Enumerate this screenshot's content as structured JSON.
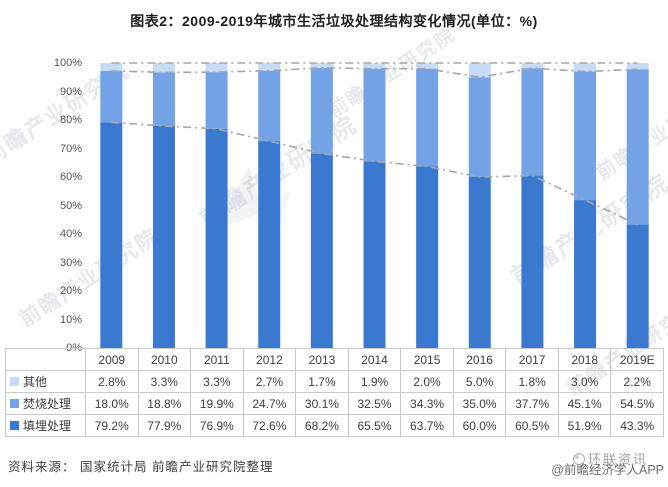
{
  "title": "图表2：2009-2019年城市生活垃圾处理结构变化情况(单位：%)",
  "colors": {
    "landfill": "#3b79d1",
    "incineration": "#73a3e6",
    "other": "#c7dcf4",
    "guide_line": "#a6a6a6",
    "table_border": "#c9c9c9",
    "text": "#3d3d3d"
  },
  "chart_data": {
    "type": "bar",
    "stacked": true,
    "title": "图表2：2009-2019年城市生活垃圾处理结构变化情况(单位：%)",
    "xlabel": "",
    "ylabel": "",
    "ylim": [
      0,
      100
    ],
    "grid": false,
    "yticks": [
      "100%",
      "90%",
      "80%",
      "70%",
      "60%",
      "50%",
      "40%",
      "30%",
      "20%",
      "10%",
      "0%"
    ],
    "categories": [
      "2009",
      "2010",
      "2011",
      "2012",
      "2013",
      "2014",
      "2015",
      "2016",
      "2017",
      "2018",
      "2019E"
    ],
    "series": [
      {
        "name": "填埋处理",
        "color_key": "landfill",
        "values": [
          79.2,
          77.9,
          76.9,
          72.6,
          68.2,
          65.5,
          63.7,
          60.0,
          60.5,
          51.9,
          43.3
        ]
      },
      {
        "name": "焚烧处理",
        "color_key": "incineration",
        "values": [
          18.0,
          18.8,
          19.9,
          24.7,
          30.1,
          32.5,
          34.3,
          35.0,
          37.7,
          45.1,
          54.5
        ]
      },
      {
        "name": "其他",
        "color_key": "other",
        "values": [
          2.8,
          3.3,
          3.3,
          2.7,
          1.7,
          1.9,
          2.0,
          5.0,
          1.8,
          3.0,
          2.2
        ]
      }
    ],
    "guide_lines": {
      "style": "dash-dot",
      "description": "gray dash-dot lines tracing cumulative stack boundaries: 填埋处理, 填埋处理+焚烧处理, and 100% total",
      "levels": [
        "landfill",
        "landfill_plus_incineration",
        "total_100"
      ]
    },
    "legend_position": "table-left",
    "table_row_order": [
      "其他",
      "焚烧处理",
      "填埋处理"
    ]
  },
  "footer": {
    "source": "资料来源： 国家统计局 前瞻产业研究院整理",
    "credit": "@前瞻经济学人APP",
    "watermark": "环联资讯"
  },
  "watermark_text": "前瞻产业研究院"
}
